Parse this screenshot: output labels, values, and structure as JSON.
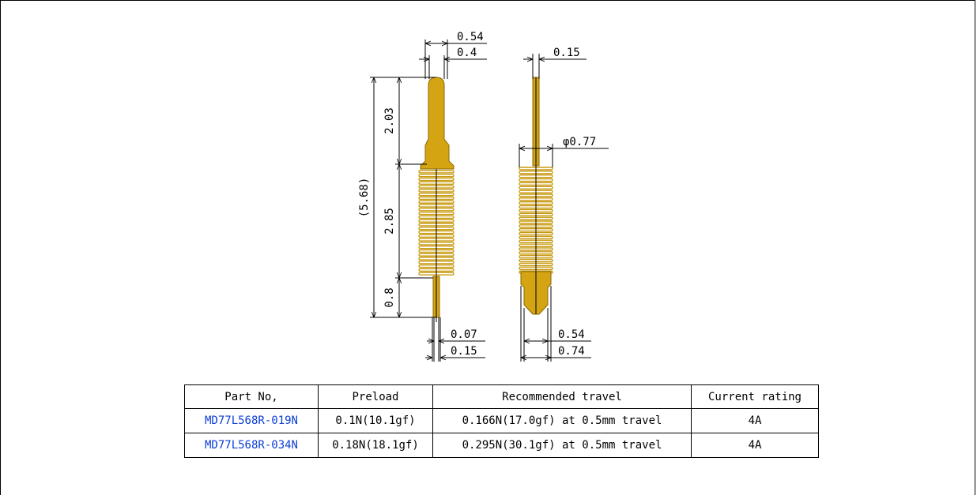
{
  "dimensions": {
    "plunger_dia_outer": "0.54",
    "plunger_dia_inner": "0.4",
    "tail_wire": "0.15",
    "spring_dia": "φ0.77",
    "plunger_length": "2.03",
    "spring_length": "2.85",
    "tail_length": "0.8",
    "total_length": "(5.68)",
    "tail_dia_inner": "0.07",
    "tail_dia_outer": "0.15",
    "barrel_dia_inner": "0.54",
    "barrel_dia_outer": "0.74"
  },
  "colors": {
    "gold": "#d4a412",
    "gold_dark": "#8a6a05",
    "part_blue": "#0b3dd6"
  },
  "table": {
    "headers": [
      "Part No,",
      "Preload",
      "Recommended travel",
      "Current rating"
    ],
    "rows": [
      {
        "part": "MD77L568R-019N",
        "preload": "0.1N(10.1gf)",
        "travel": "0.166N(17.0gf) at 0.5mm travel",
        "current": "4A"
      },
      {
        "part": "MD77L568R-034N",
        "preload": "0.18N(18.1gf)",
        "travel": "0.295N(30.1gf) at 0.5mm travel",
        "current": "4A"
      }
    ]
  }
}
